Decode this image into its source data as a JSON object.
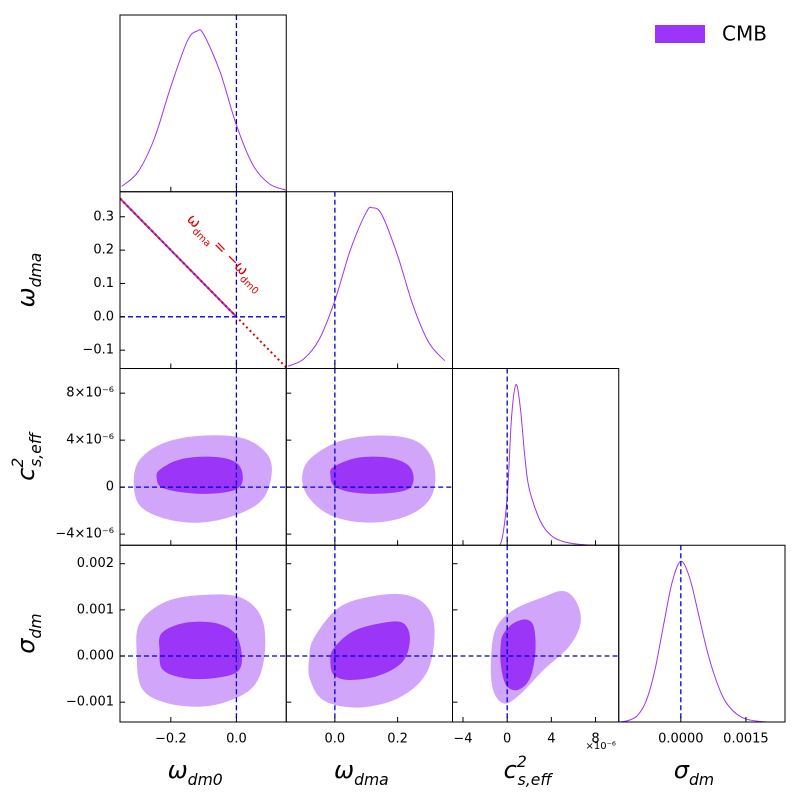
{
  "chart_data": {
    "type": "corner",
    "legend": {
      "label": "CMB",
      "color": "#9b35f7",
      "position": "upper right"
    },
    "params": [
      {
        "symbol": "ω",
        "sub": "dm0",
        "lim": [
          -0.355,
          0.152
        ],
        "xticks": [
          {
            "value": -0.2,
            "label": "−0.2"
          },
          {
            "value": 0,
            "label": "0.0"
          }
        ]
      },
      {
        "symbol": "ω",
        "sub": "dma",
        "lim": [
          -0.155,
          0.375
        ],
        "xticks": [
          {
            "value": 0,
            "label": "0.0"
          },
          {
            "value": 0.2,
            "label": "0.2"
          }
        ],
        "yticks": [
          {
            "value": -0.1,
            "label": "−0.1"
          },
          {
            "value": 0,
            "label": "0.0"
          },
          {
            "value": 0.1,
            "label": "0.1"
          },
          {
            "value": 0.2,
            "label": "0.2"
          },
          {
            "value": 0.3,
            "label": "0.3"
          }
        ]
      },
      {
        "symbol": "c",
        "sup": "2",
        "sub": "s,eff",
        "lim": [
          -4.95e-06,
          1.01e-05
        ],
        "xticks": [
          {
            "value": -4e-06,
            "label": "−4"
          },
          0,
          {
            "value": 4e-06,
            "label": "4"
          },
          {
            "value": 8e-06,
            "label": "8"
          }
        ],
        "offset_label": "×10⁻⁶",
        "yticks": [
          {
            "value": -4e-06,
            "label": "−4×10⁻⁶"
          },
          0,
          {
            "value": 4e-06,
            "label": "4×10⁻⁶"
          },
          {
            "value": 8e-06,
            "label": "8×10⁻⁶"
          }
        ]
      },
      {
        "symbol": "σ",
        "sub": "dm",
        "lim": [
          -0.00143,
          0.0024
        ],
        "xticks": [
          {
            "value": 0,
            "label": "0.0000"
          },
          {
            "value": 0.0015,
            "label": "0.0015"
          }
        ],
        "yticks": [
          {
            "value": -0.001,
            "label": "−0.001"
          },
          {
            "value": 0,
            "label": "0.000"
          },
          {
            "value": 0.001,
            "label": "0.001"
          },
          {
            "value": 0.002,
            "label": "0.002"
          }
        ]
      }
    ],
    "fiducial": [
      0,
      0,
      0,
      0
    ],
    "fiducial_color": "#0000cc",
    "density_ylim": [
      0,
      1.1
    ],
    "line_color": "#9b35f7",
    "marginals": [
      {
        "x": [
          -0.35,
          -0.3,
          -0.25,
          -0.2,
          -0.15,
          -0.12,
          -0.1,
          -0.05,
          0,
          0.05,
          0.1,
          0.15
        ],
        "values": [
          0.033,
          0.124,
          0.333,
          0.654,
          0.937,
          1.0,
          0.98,
          0.747,
          0.415,
          0.168,
          0.05,
          0.011
        ]
      },
      {
        "x": [
          -0.15,
          -0.1,
          -0.05,
          0,
          0.05,
          0.1,
          0.12,
          0.15,
          0.2,
          0.25,
          0.3,
          0.35
        ],
        "values": [
          0.014,
          0.058,
          0.181,
          0.423,
          0.741,
          0.972,
          1.0,
          0.956,
          0.703,
          0.388,
          0.16,
          0.049
        ]
      },
      {
        "x": [
          -1e-06,
          -5e-07,
          0,
          4e-07,
          8e-07,
          1.2e-06,
          1.6e-06,
          2e-06,
          3e-06,
          4e-06,
          5e-06,
          6e-06,
          7e-06,
          8e-06
        ],
        "values": [
          0,
          0.03,
          0.3,
          0.8,
          1.0,
          0.85,
          0.55,
          0.35,
          0.15,
          0.06,
          0.025,
          0.01,
          0.003,
          0
        ]
      },
      {
        "x": [
          -0.0014,
          -0.0012,
          -0.001,
          -0.0008,
          -0.0006,
          -0.0004,
          -0.0002,
          0,
          0.0002,
          0.0004,
          0.0006,
          0.0008,
          0.001,
          0.0012,
          0.0014,
          0.0016,
          0.0018,
          0.002
        ],
        "values": [
          0,
          0.01,
          0.04,
          0.13,
          0.32,
          0.6,
          0.87,
          1.0,
          0.9,
          0.68,
          0.45,
          0.27,
          0.14,
          0.07,
          0.03,
          0.012,
          0.004,
          0
        ]
      }
    ],
    "lower": [
      [],
      [
        {
          "line": {
            "x": [
              -0.355,
              0.0
            ],
            "y": [
              0.355,
              0.0
            ],
            "color": "#9b35f7"
          },
          "reference": {
            "x": [
              -0.355,
              0.152
            ],
            "y": [
              0.355,
              -0.152
            ],
            "color": "#e00000"
          },
          "annotation": {
            "lhs": {
              "symbol": "ω",
              "sub": "dma"
            },
            "op": "= −",
            "rhs": {
              "symbol": "ω",
              "sub": "dm0"
            },
            "color": "#e00000"
          }
        }
      ],
      [
        {
          "levels": [
            {
              "color": "#d1a6fa",
              "x": [
                -0.294,
                -0.218,
                -0.097,
                0.024,
                0.094,
                0.106,
                0.076,
                -0.006,
                -0.112,
                -0.218,
                -0.294,
                -0.312
              ],
              "y": [
                2.31e-06,
                3.76e-06,
                4.36e-06,
                4.1e-06,
                2.74e-06,
                1.03e-06,
                -1.11e-06,
                -2.39e-06,
                -2.99e-06,
                -2.65e-06,
                -1.54e-06,
                4.3e-07
              ]
            },
            {
              "color": "#9b35f7",
              "x": [
                -0.233,
                -0.173,
                -0.082,
                -0.006,
                0.018,
                0.003,
                -0.067,
                -0.158,
                -0.227,
                -0.242
              ],
              "y": [
                1.45e-06,
                2.31e-06,
                2.56e-06,
                2.14e-06,
                1.03e-06,
                -9e-08,
                -5.1e-07,
                -4.3e-07,
                0,
                7.7e-07
              ]
            }
          ]
        },
        {
          "levels": [
            {
              "color": "#d1a6fa",
              "x": [
                -0.081,
                0.013,
                0.138,
                0.247,
                0.303,
                0.319,
                0.294,
                0.216,
                0.106,
                -0.003,
                -0.075,
                -0.103
              ],
              "y": [
                2.31e-06,
                3.85e-06,
                4.36e-06,
                4.02e-06,
                2.74e-06,
                6e-07,
                -1.28e-06,
                -2.56e-06,
                -2.99e-06,
                -2.48e-06,
                -1.11e-06,
                6e-07
              ]
            },
            {
              "color": "#9b35f7",
              "x": [
                -0.003,
                0.075,
                0.169,
                0.231,
                0.25,
                0.231,
                0.153,
                0.059,
                0,
                -0.013
              ],
              "y": [
                1.71e-06,
                2.48e-06,
                2.48e-06,
                1.88e-06,
                7.7e-07,
                -1.7e-07,
                -5.1e-07,
                -4.3e-07,
                9e-08,
                1.03e-06
              ]
            }
          ]
        }
      ],
      [
        {
          "levels": [
            {
              "color": "#d1a6fa",
              "x": [
                -0.294,
                -0.218,
                -0.112,
                0.009,
                0.076,
                0.085,
                0.055,
                -0.021,
                -0.112,
                -0.218,
                -0.288,
                -0.303
              ],
              "y": [
                0.00071,
                0.00116,
                0.00131,
                0.00127,
                0.00082,
                4e-05,
                -0.00062,
                -0.00096,
                -0.00109,
                -0.001,
                -0.00069,
                4e-05
              ]
            },
            {
              "color": "#9b35f7",
              "x": [
                -0.227,
                -0.158,
                -0.067,
                -0.006,
                0.015,
                0.003,
                -0.067,
                -0.158,
                -0.224,
                -0.233
              ],
              "y": [
                0.00049,
                0.00071,
                0.00071,
                0.00049,
                4e-05,
                -0.00033,
                -0.00047,
                -0.00047,
                -0.00029,
                0.00011
              ]
            }
          ]
        },
        {
          "levels": [
            {
              "color": "#d1a6fa",
              "x": [
                -0.066,
                0.013,
                0.122,
                0.231,
                0.3,
                0.316,
                0.288,
                0.2,
                0.075,
                -0.034,
                -0.078,
                -0.081
              ],
              "y": [
                0.00038,
                0.00104,
                0.00129,
                0.00131,
                0.001,
                0.00038,
                -0.0004,
                -0.00091,
                -0.00111,
                -0.00096,
                -0.00051,
                -7e-05
              ]
            },
            {
              "color": "#9b35f7",
              "x": [
                -0.003,
                0.059,
                0.153,
                0.216,
                0.238,
                0.216,
                0.138,
                0.044,
                -0.003,
                -0.013
              ],
              "y": [
                0.00016,
                0.00053,
                0.00071,
                0.00071,
                0.00038,
                -0.00011,
                -0.00042,
                -0.00051,
                -0.0004,
                -0.00011
              ]
            }
          ]
        },
        {
          "levels": [
            {
              "color": "#d1a6fa",
              "x": [
                -9.8e-07,
                6.3e-07,
                3.3e-06,
                5.09e-06,
                6.25e-06,
                6.61e-06,
                5.54e-06,
                3.3e-06,
                1.07e-06,
                -2.7e-07,
                -1.25e-06,
                -1.43e-06
              ],
              "y": [
                0.0006,
                0.001,
                0.00127,
                0.0014,
                0.00116,
                0.00071,
                0.0002,
                -0.00029,
                -0.00084,
                -0.00102,
                -0.00073,
                -7e-05
              ]
            },
            {
              "color": "#9b35f7",
              "x": [
                -2.7e-07,
                6.3e-07,
                1.79e-06,
                2.41e-06,
                2.5e-06,
                1.96e-06,
                8.9e-07,
                -9e-08,
                -5.4e-07,
                -5.4e-07
              ],
              "y": [
                0.00049,
                0.00071,
                0.00078,
                0.0006,
                4e-05,
                -0.00051,
                -0.00073,
                -0.00062,
                -0.00018,
                0.00027
              ]
            }
          ]
        }
      ]
    ]
  }
}
